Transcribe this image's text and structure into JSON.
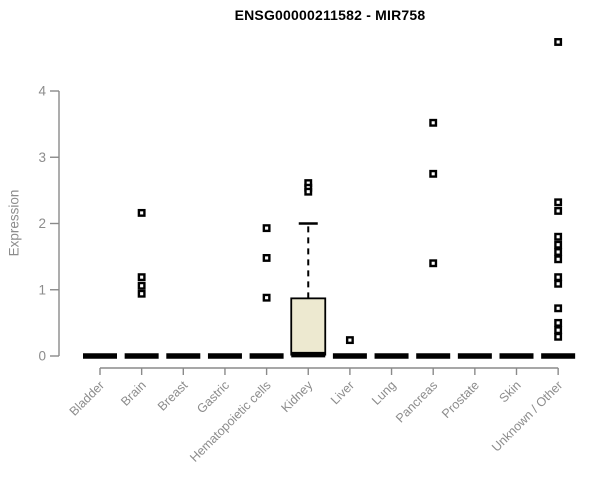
{
  "title": "ENSG00000211582 - MIR758",
  "colors": {
    "axis": "#8a8a8a",
    "tick_label": "#8c8c8c",
    "box_fill": "#ede9d0",
    "box_border": "#000000",
    "data": "#000000",
    "title": "#000000",
    "background": "#ffffff"
  },
  "chart_data": {
    "type": "boxplot",
    "title": "ENSG00000211582 - MIR758",
    "xlabel": "",
    "ylabel": "Expression",
    "ylim": [
      0,
      4.9
    ],
    "yticks": [
      0,
      1,
      2,
      3,
      4
    ],
    "grid": false,
    "legend": "none",
    "categories": [
      "Bladder",
      "Brain",
      "Breast",
      "Gastric",
      "Hematopoietic cells",
      "Kidney",
      "Liver",
      "Lung",
      "Pancreas",
      "Prostate",
      "Skin",
      "Unknown / Other"
    ],
    "boxes": [
      {
        "category": "Bladder",
        "q1": 0,
        "median": 0,
        "q3": 0,
        "whisker_low": 0,
        "whisker_high": 0,
        "outliers": []
      },
      {
        "category": "Brain",
        "q1": 0,
        "median": 0,
        "q3": 0,
        "whisker_low": 0,
        "whisker_high": 0,
        "outliers": [
          2.16,
          1.19,
          1.06,
          0.94
        ]
      },
      {
        "category": "Breast",
        "q1": 0,
        "median": 0,
        "q3": 0,
        "whisker_low": 0,
        "whisker_high": 0,
        "outliers": []
      },
      {
        "category": "Gastric",
        "q1": 0,
        "median": 0,
        "q3": 0,
        "whisker_low": 0,
        "whisker_high": 0,
        "outliers": []
      },
      {
        "category": "Hematopoietic cells",
        "q1": 0,
        "median": 0,
        "q3": 0,
        "whisker_low": 0,
        "whisker_high": 0,
        "outliers": [
          1.93,
          1.48,
          0.88
        ]
      },
      {
        "category": "Kidney",
        "q1": 0.02,
        "median": 0.02,
        "q3": 0.87,
        "whisker_low": 0,
        "whisker_high": 2.0,
        "outliers": [
          2.61,
          2.54,
          2.48
        ]
      },
      {
        "category": "Liver",
        "q1": 0,
        "median": 0,
        "q3": 0,
        "whisker_low": 0,
        "whisker_high": 0,
        "outliers": [
          0.24
        ]
      },
      {
        "category": "Lung",
        "q1": 0,
        "median": 0,
        "q3": 0,
        "whisker_low": 0,
        "whisker_high": 0,
        "outliers": []
      },
      {
        "category": "Pancreas",
        "q1": 0,
        "median": 0,
        "q3": 0,
        "whisker_low": 0,
        "whisker_high": 0,
        "outliers": [
          3.52,
          2.75,
          1.4
        ]
      },
      {
        "category": "Prostate",
        "q1": 0,
        "median": 0,
        "q3": 0,
        "whisker_low": 0,
        "whisker_high": 0,
        "outliers": []
      },
      {
        "category": "Skin",
        "q1": 0,
        "median": 0,
        "q3": 0,
        "whisker_low": 0,
        "whisker_high": 0,
        "outliers": []
      },
      {
        "category": "Unknown / Other",
        "q1": 0,
        "median": 0,
        "q3": 0,
        "whisker_low": 0,
        "whisker_high": 0,
        "outliers": [
          4.74,
          2.32,
          2.19,
          1.8,
          1.68,
          1.57,
          1.46,
          1.19,
          1.09,
          0.72,
          0.5,
          0.39,
          0.29
        ]
      }
    ]
  }
}
